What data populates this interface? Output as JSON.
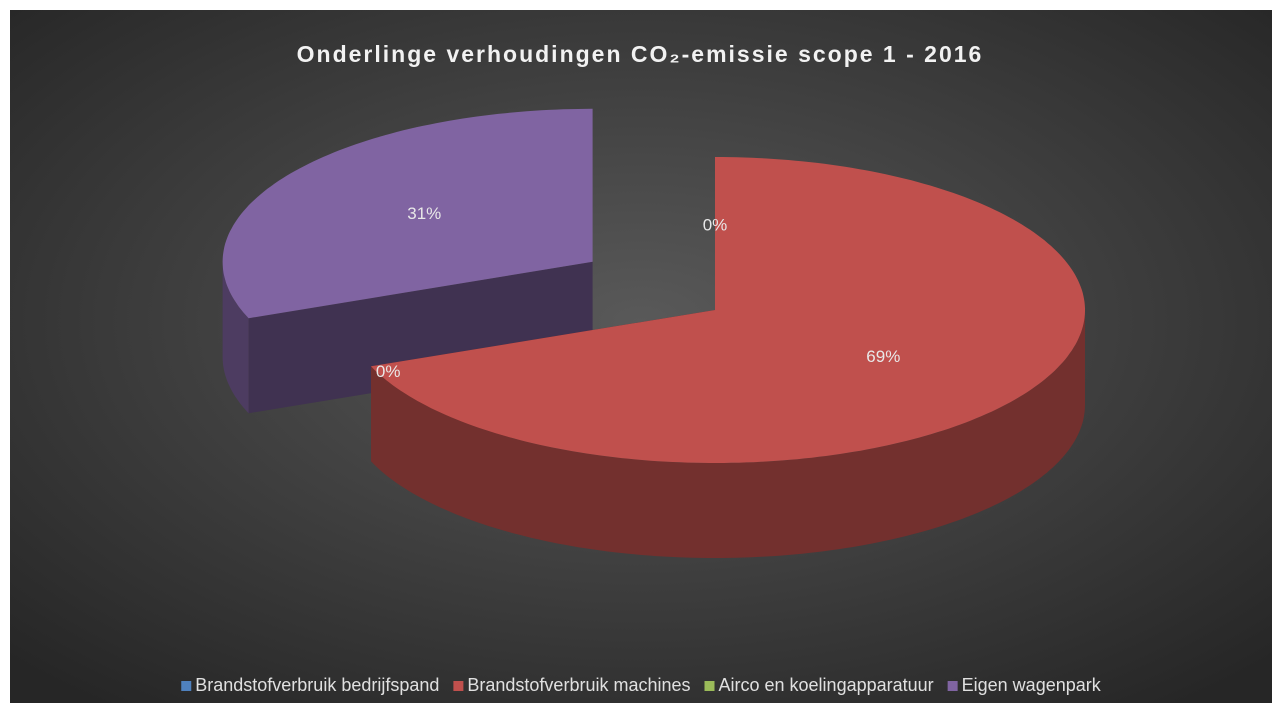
{
  "chart_data": {
    "type": "pie3d",
    "title": "Onderlinge verhoudingen CO₂-emissie scope 1 - 2016",
    "categories": [
      "Brandstofverbruik bedrijfspand",
      "Brandstofverbruik machines",
      "Airco en koelingapparatuur",
      "Eigen wagenpark"
    ],
    "values": [
      0,
      69,
      0,
      31
    ],
    "value_labels": [
      "0%",
      "69%",
      "0%",
      "31%"
    ],
    "colors": [
      "#4f81bd",
      "#c0504d",
      "#9bbb59",
      "#8064a2"
    ],
    "legend": "bottom"
  }
}
